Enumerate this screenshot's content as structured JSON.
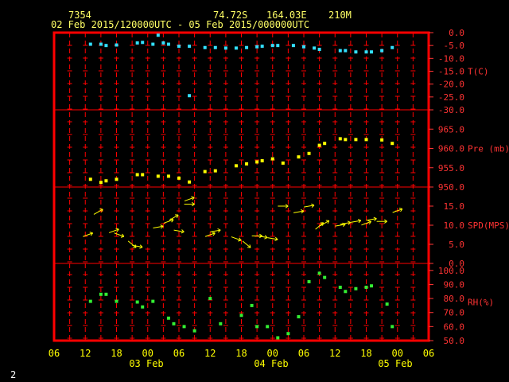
{
  "header": {
    "station": "7354",
    "lat": "74.72S",
    "lon": "164.03E",
    "elev": "210M",
    "time_range": "02 Feb 2015/120000UTC - 05 Feb 2015/000000UTC"
  },
  "page_number": "2",
  "colors": {
    "frame": "#ff0000",
    "grid": "#ff0000",
    "axis_text": "#ff3333",
    "time_text": "#ffff00",
    "temp": "#33e0ff",
    "pressure": "#ffff00",
    "wind": "#ffff00",
    "rh": "#33ee33"
  },
  "chart_data": {
    "type": "scatter",
    "x_axis": {
      "unit": "hours",
      "range": [
        "2015-02-02T06:00",
        "2015-02-05T06:00"
      ],
      "tick_labels": [
        "06",
        "12",
        "18",
        "00",
        "06",
        "12",
        "18",
        "00",
        "06",
        "12",
        "18",
        "00",
        "06"
      ],
      "date_labels": [
        "03 Feb",
        "04 Feb",
        "05 Feb"
      ]
    },
    "panels": [
      {
        "label": "T(C)",
        "ylim": [
          -30,
          0
        ],
        "tick_labels": [
          "0.0",
          "-5.0",
          "-10.0",
          "-15.0",
          "-20.0",
          "-25.0",
          "-30.0"
        ],
        "points": [
          [
            "2015-02-02T13:00",
            -4.5
          ],
          [
            "2015-02-02T15:00",
            -4.5
          ],
          [
            "2015-02-02T16:00",
            -5
          ],
          [
            "2015-02-02T18:00",
            -4.8
          ],
          [
            "2015-02-02T22:00",
            -4
          ],
          [
            "2015-02-02T23:00",
            -3.8
          ],
          [
            "2015-02-03T01:00",
            -4.5
          ],
          [
            "2015-02-03T02:00",
            -1
          ],
          [
            "2015-02-03T03:00",
            -4
          ],
          [
            "2015-02-03T04:00",
            -4.5
          ],
          [
            "2015-02-03T06:00",
            -5.3
          ],
          [
            "2015-02-03T08:00",
            -5.3
          ],
          [
            "2015-02-03T08:00",
            -24.5
          ],
          [
            "2015-02-03T11:00",
            -5.8
          ],
          [
            "2015-02-03T13:00",
            -5.8
          ],
          [
            "2015-02-03T15:00",
            -6
          ],
          [
            "2015-02-03T17:00",
            -6
          ],
          [
            "2015-02-03T19:00",
            -5.8
          ],
          [
            "2015-02-03T21:00",
            -5.5
          ],
          [
            "2015-02-03T22:00",
            -5.3
          ],
          [
            "2015-02-04T00:00",
            -5
          ],
          [
            "2015-02-04T01:00",
            -5
          ],
          [
            "2015-02-04T04:00",
            -5
          ],
          [
            "2015-02-04T06:00",
            -5.5
          ],
          [
            "2015-02-04T08:00",
            -6
          ],
          [
            "2015-02-04T09:00",
            -6.5
          ],
          [
            "2015-02-04T13:00",
            -7
          ],
          [
            "2015-02-04T14:00",
            -7
          ],
          [
            "2015-02-04T16:00",
            -7.5
          ],
          [
            "2015-02-04T18:00",
            -7.5
          ],
          [
            "2015-02-04T19:00",
            -7.5
          ],
          [
            "2015-02-04T21:00",
            -7
          ],
          [
            "2015-02-04T23:00",
            -5.8
          ]
        ]
      },
      {
        "label": "Pre (mb)",
        "ylim": [
          950,
          970
        ],
        "tick_labels": [
          "965.0",
          "960.0",
          "955.0",
          "950.0"
        ],
        "tick_values": [
          965,
          960,
          955,
          950
        ],
        "points": [
          [
            "2015-02-02T13:00",
            952
          ],
          [
            "2015-02-02T15:00",
            951.2
          ],
          [
            "2015-02-02T16:00",
            951.6
          ],
          [
            "2015-02-02T18:00",
            952
          ],
          [
            "2015-02-02T22:00",
            953.2
          ],
          [
            "2015-02-02T23:00",
            953.2
          ],
          [
            "2015-02-03T02:00",
            952.8
          ],
          [
            "2015-02-03T04:00",
            952.8
          ],
          [
            "2015-02-03T06:00",
            952.3
          ],
          [
            "2015-02-03T08:00",
            951.3
          ],
          [
            "2015-02-03T11:00",
            954
          ],
          [
            "2015-02-03T13:00",
            954.2
          ],
          [
            "2015-02-03T17:00",
            955.5
          ],
          [
            "2015-02-03T19:00",
            956
          ],
          [
            "2015-02-03T21:00",
            956.5
          ],
          [
            "2015-02-03T22:00",
            956.8
          ],
          [
            "2015-02-04T00:00",
            957.3
          ],
          [
            "2015-02-04T02:00",
            956.2
          ],
          [
            "2015-02-04T05:00",
            957.8
          ],
          [
            "2015-02-04T07:00",
            958.7
          ],
          [
            "2015-02-04T09:00",
            960.8
          ],
          [
            "2015-02-04T10:00",
            961.3
          ],
          [
            "2015-02-04T13:00",
            962.5
          ],
          [
            "2015-02-04T14:00",
            962.3
          ],
          [
            "2015-02-04T16:00",
            962.3
          ],
          [
            "2015-02-04T18:00",
            962.3
          ],
          [
            "2015-02-04T21:00",
            962.2
          ],
          [
            "2015-02-04T23:00",
            961.3
          ]
        ]
      },
      {
        "label": "SPD(MPS)",
        "ylim": [
          0,
          20
        ],
        "tick_labels": [
          "15.0",
          "10.0",
          "5.0",
          "0.0"
        ],
        "tick_values": [
          15,
          10,
          5,
          0
        ],
        "barbs": [
          [
            "2015-02-02T12:30",
            7.5,
            20
          ],
          [
            "2015-02-02T14:30",
            13.5,
            30
          ],
          [
            "2015-02-02T17:30",
            8.5,
            20
          ],
          [
            "2015-02-02T18:30",
            7.5,
            -20
          ],
          [
            "2015-02-02T21:00",
            5.0,
            -40
          ],
          [
            "2015-02-02T22:00",
            4.5,
            -10
          ],
          [
            "2015-02-03T02:00",
            9.5,
            10
          ],
          [
            "2015-02-03T04:00",
            11,
            20
          ],
          [
            "2015-02-03T05:00",
            12,
            30
          ],
          [
            "2015-02-03T06:00",
            8.5,
            -10
          ],
          [
            "2015-02-03T08:00",
            16.8,
            20
          ],
          [
            "2015-02-03T08:00",
            15.5,
            0
          ],
          [
            "2015-02-03T12:00",
            7.5,
            20
          ],
          [
            "2015-02-03T13:00",
            8.5,
            10
          ],
          [
            "2015-02-03T17:00",
            6.5,
            -20
          ],
          [
            "2015-02-03T19:00",
            5.0,
            -40
          ],
          [
            "2015-02-03T21:00",
            7.2,
            0
          ],
          [
            "2015-02-03T22:00",
            7.0,
            -10
          ],
          [
            "2015-02-04T00:00",
            6.5,
            -10
          ],
          [
            "2015-02-04T02:00",
            15,
            0
          ],
          [
            "2015-02-04T05:00",
            13.5,
            10
          ],
          [
            "2015-02-04T07:00",
            15,
            10
          ],
          [
            "2015-02-04T09:00",
            9.8,
            40
          ],
          [
            "2015-02-04T10:00",
            10.5,
            30
          ],
          [
            "2015-02-04T13:00",
            10,
            10
          ],
          [
            "2015-02-04T14:00",
            10.5,
            10
          ],
          [
            "2015-02-04T16:00",
            11,
            10
          ],
          [
            "2015-02-04T18:00",
            10.5,
            20
          ],
          [
            "2015-02-04T19:00",
            11.5,
            10
          ],
          [
            "2015-02-04T21:00",
            11,
            0
          ],
          [
            "2015-02-05T00:00",
            13.8,
            20
          ]
        ]
      },
      {
        "label": "RH(%)",
        "ylim": [
          50,
          105
        ],
        "tick_labels": [
          "100.0",
          "90.0",
          "80.0",
          "70.0",
          "60.0",
          "50.0"
        ],
        "tick_values": [
          100,
          90,
          80,
          70,
          60,
          50
        ],
        "points": [
          [
            "2015-02-02T13:00",
            78
          ],
          [
            "2015-02-02T15:00",
            83
          ],
          [
            "2015-02-02T16:00",
            83
          ],
          [
            "2015-02-02T18:00",
            78
          ],
          [
            "2015-02-02T22:00",
            77.5
          ],
          [
            "2015-02-02T23:00",
            74
          ],
          [
            "2015-02-03T01:00",
            78
          ],
          [
            "2015-02-03T04:00",
            66
          ],
          [
            "2015-02-03T05:00",
            62
          ],
          [
            "2015-02-03T07:00",
            60
          ],
          [
            "2015-02-03T09:00",
            57
          ],
          [
            "2015-02-03T12:00",
            80
          ],
          [
            "2015-02-03T14:00",
            62
          ],
          [
            "2015-02-03T18:00",
            68
          ],
          [
            "2015-02-03T20:00",
            75
          ],
          [
            "2015-02-03T21:00",
            60
          ],
          [
            "2015-02-03T23:00",
            60
          ],
          [
            "2015-02-04T01:00",
            52
          ],
          [
            "2015-02-04T03:00",
            55
          ],
          [
            "2015-02-04T05:00",
            67
          ],
          [
            "2015-02-04T07:00",
            92
          ],
          [
            "2015-02-04T09:00",
            98
          ],
          [
            "2015-02-04T10:00",
            95
          ],
          [
            "2015-02-04T13:00",
            88
          ],
          [
            "2015-02-04T14:00",
            85
          ],
          [
            "2015-02-04T16:00",
            87
          ],
          [
            "2015-02-04T18:00",
            88
          ],
          [
            "2015-02-04T19:00",
            89
          ],
          [
            "2015-02-04T22:00",
            76
          ],
          [
            "2015-02-04T23:00",
            60
          ]
        ]
      }
    ]
  }
}
